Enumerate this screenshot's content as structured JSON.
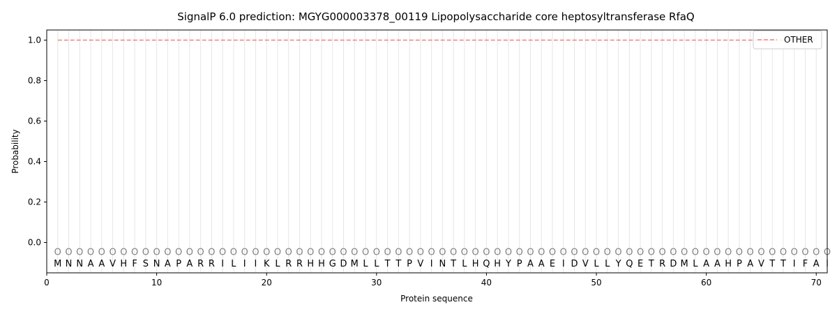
{
  "chart_data": {
    "type": "line",
    "title": "SignalP 6.0 prediction: MGYG000003378_00119 Lipopolysaccharide core heptosyltransferase RfaQ",
    "xlabel": "Protein sequence",
    "ylabel": "Probability",
    "xlim": [
      0,
      71
    ],
    "ylim": [
      -0.15,
      1.05
    ],
    "xticks": [
      0,
      10,
      20,
      30,
      40,
      50,
      60,
      70
    ],
    "yticks": [
      0.0,
      0.2,
      0.4,
      0.6,
      0.8,
      1.0
    ],
    "ytick_labels": [
      "0.0",
      "0.2",
      "0.4",
      "0.6",
      "0.8",
      "1.0"
    ],
    "sequence": "MNNAAVHFSNAPARRILIIKLRRHHGDMLLTTPVINTLHQHYPAAEIDVLLYQETRDMLAAHPAVTTIFAI",
    "region_marker": "O",
    "region_marker_y": -0.045,
    "series": [
      {
        "name": "OTHER",
        "color": "#f08080",
        "style": "dashed",
        "x_start": 1,
        "x_end": 70,
        "value": 1.0
      }
    ],
    "legend": {
      "position": "top-right",
      "entries": [
        "OTHER"
      ]
    },
    "grid": "vertical lines at each residue"
  }
}
